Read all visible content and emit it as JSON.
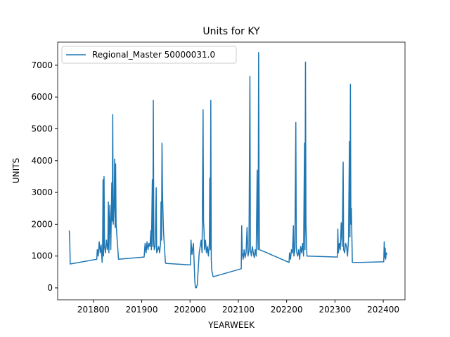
{
  "chart_data": {
    "type": "line",
    "title": "Units for KY",
    "x_label": "YEARWEEK",
    "y_label": "UNITS",
    "legend": "upper left",
    "grid": false,
    "xlim": [
      201726,
      202445
    ],
    "ylim": [
      -375,
      7726
    ],
    "xticks": [
      201800,
      201900,
      202000,
      202100,
      202200,
      202300,
      202400
    ],
    "yticks": [
      0,
      1000,
      2000,
      3000,
      4000,
      5000,
      6000,
      7000
    ],
    "x": [
      201750,
      201751,
      201752,
      201807,
      201808,
      201810,
      201812,
      201814,
      201816,
      201818,
      201819,
      201820,
      201821,
      201822,
      201823,
      201825,
      201827,
      201829,
      201830,
      201831,
      201832,
      201834,
      201836,
      201838,
      201839,
      201840,
      201841,
      201843,
      201844,
      201845,
      201846,
      201847,
      201852,
      201905,
      201907,
      201909,
      201911,
      201913,
      201915,
      201917,
      201919,
      201920,
      201922,
      201923,
      201924,
      201925,
      201926,
      201928,
      201930,
      201931,
      201933,
      201935,
      201937,
      201939,
      201940,
      201941,
      201942,
      201943,
      201945,
      201947,
      201949,
      201950,
      202001,
      202002,
      202004,
      202007,
      202010,
      202011,
      202013,
      202015,
      202017,
      202019,
      202021,
      202023,
      202025,
      202027,
      202028,
      202029,
      202030,
      202032,
      202034,
      202036,
      202038,
      202040,
      202041,
      202042,
      202043,
      202044,
      202045,
      202047,
      202048,
      202106,
      202107,
      202108,
      202110,
      202112,
      202114,
      202116,
      202118,
      202120,
      202122,
      202124,
      202125,
      202127,
      202129,
      202131,
      202133,
      202135,
      202137,
      202139,
      202140,
      202141,
      202142,
      202143,
      202144,
      202152,
      202205,
      202206,
      202208,
      202210,
      202212,
      202214,
      202215,
      202217,
      202219,
      202220,
      202221,
      202223,
      202225,
      202227,
      202229,
      202231,
      202233,
      202235,
      202237,
      202238,
      202239,
      202240,
      202241,
      202242,
      202244,
      202305,
      202306,
      202307,
      202309,
      202311,
      202313,
      202315,
      202317,
      202318,
      202320,
      202322,
      202324,
      202326,
      202328,
      202330,
      202331,
      202332,
      202333,
      202334,
      202336,
      202352,
      202401,
      202402,
      202403,
      202404,
      202405,
      202406,
      202408
    ],
    "series": [
      {
        "name": "Regional_Master 50000031.0",
        "color": "#1f77b4",
        "values": [
          1800,
          1500,
          750,
          900,
          1200,
          1000,
          1450,
          1100,
          1350,
          800,
          1200,
          3400,
          1000,
          3500,
          1300,
          1100,
          1500,
          1200,
          1400,
          2700,
          1100,
          2600,
          1200,
          3300,
          2100,
          5450,
          2000,
          2700,
          4050,
          1900,
          3900,
          2000,
          900,
          970,
          1400,
          1100,
          1450,
          1200,
          1400,
          1300,
          1800,
          1200,
          3400,
          1300,
          5900,
          1500,
          1200,
          1300,
          3150,
          1100,
          1200,
          1300,
          1100,
          1400,
          2700,
          1500,
          4550,
          3000,
          1800,
          1300,
          800,
          770,
          720,
          1500,
          1050,
          1400,
          200,
          20,
          0,
          100,
          600,
          1100,
          1300,
          1500,
          1100,
          5600,
          2100,
          1800,
          1200,
          1500,
          1100,
          1300,
          1000,
          1400,
          3450,
          1200,
          5900,
          900,
          550,
          400,
          350,
          600,
          1950,
          1100,
          900,
          1200,
          950,
          1100,
          1900,
          1000,
          1150,
          6650,
          1200,
          1000,
          1300,
          1100,
          950,
          1200,
          1000,
          3700,
          1800,
          1200,
          7400,
          3000,
          1200,
          1150,
          800,
          1100,
          900,
          1200,
          1100,
          1950,
          1000,
          1200,
          5200,
          1300,
          1100,
          1000,
          1200,
          900,
          1300,
          1100,
          1400,
          1000,
          4550,
          1200,
          7100,
          2000,
          1500,
          1000,
          1000,
          970,
          1850,
          1100,
          1400,
          1200,
          2050,
          1300,
          3950,
          1200,
          1100,
          1400,
          1300,
          1000,
          1500,
          4600,
          1600,
          6400,
          2000,
          2500,
          800,
          800,
          820,
          1450,
          950,
          1250,
          900,
          1100,
          1050
        ]
      }
    ]
  }
}
